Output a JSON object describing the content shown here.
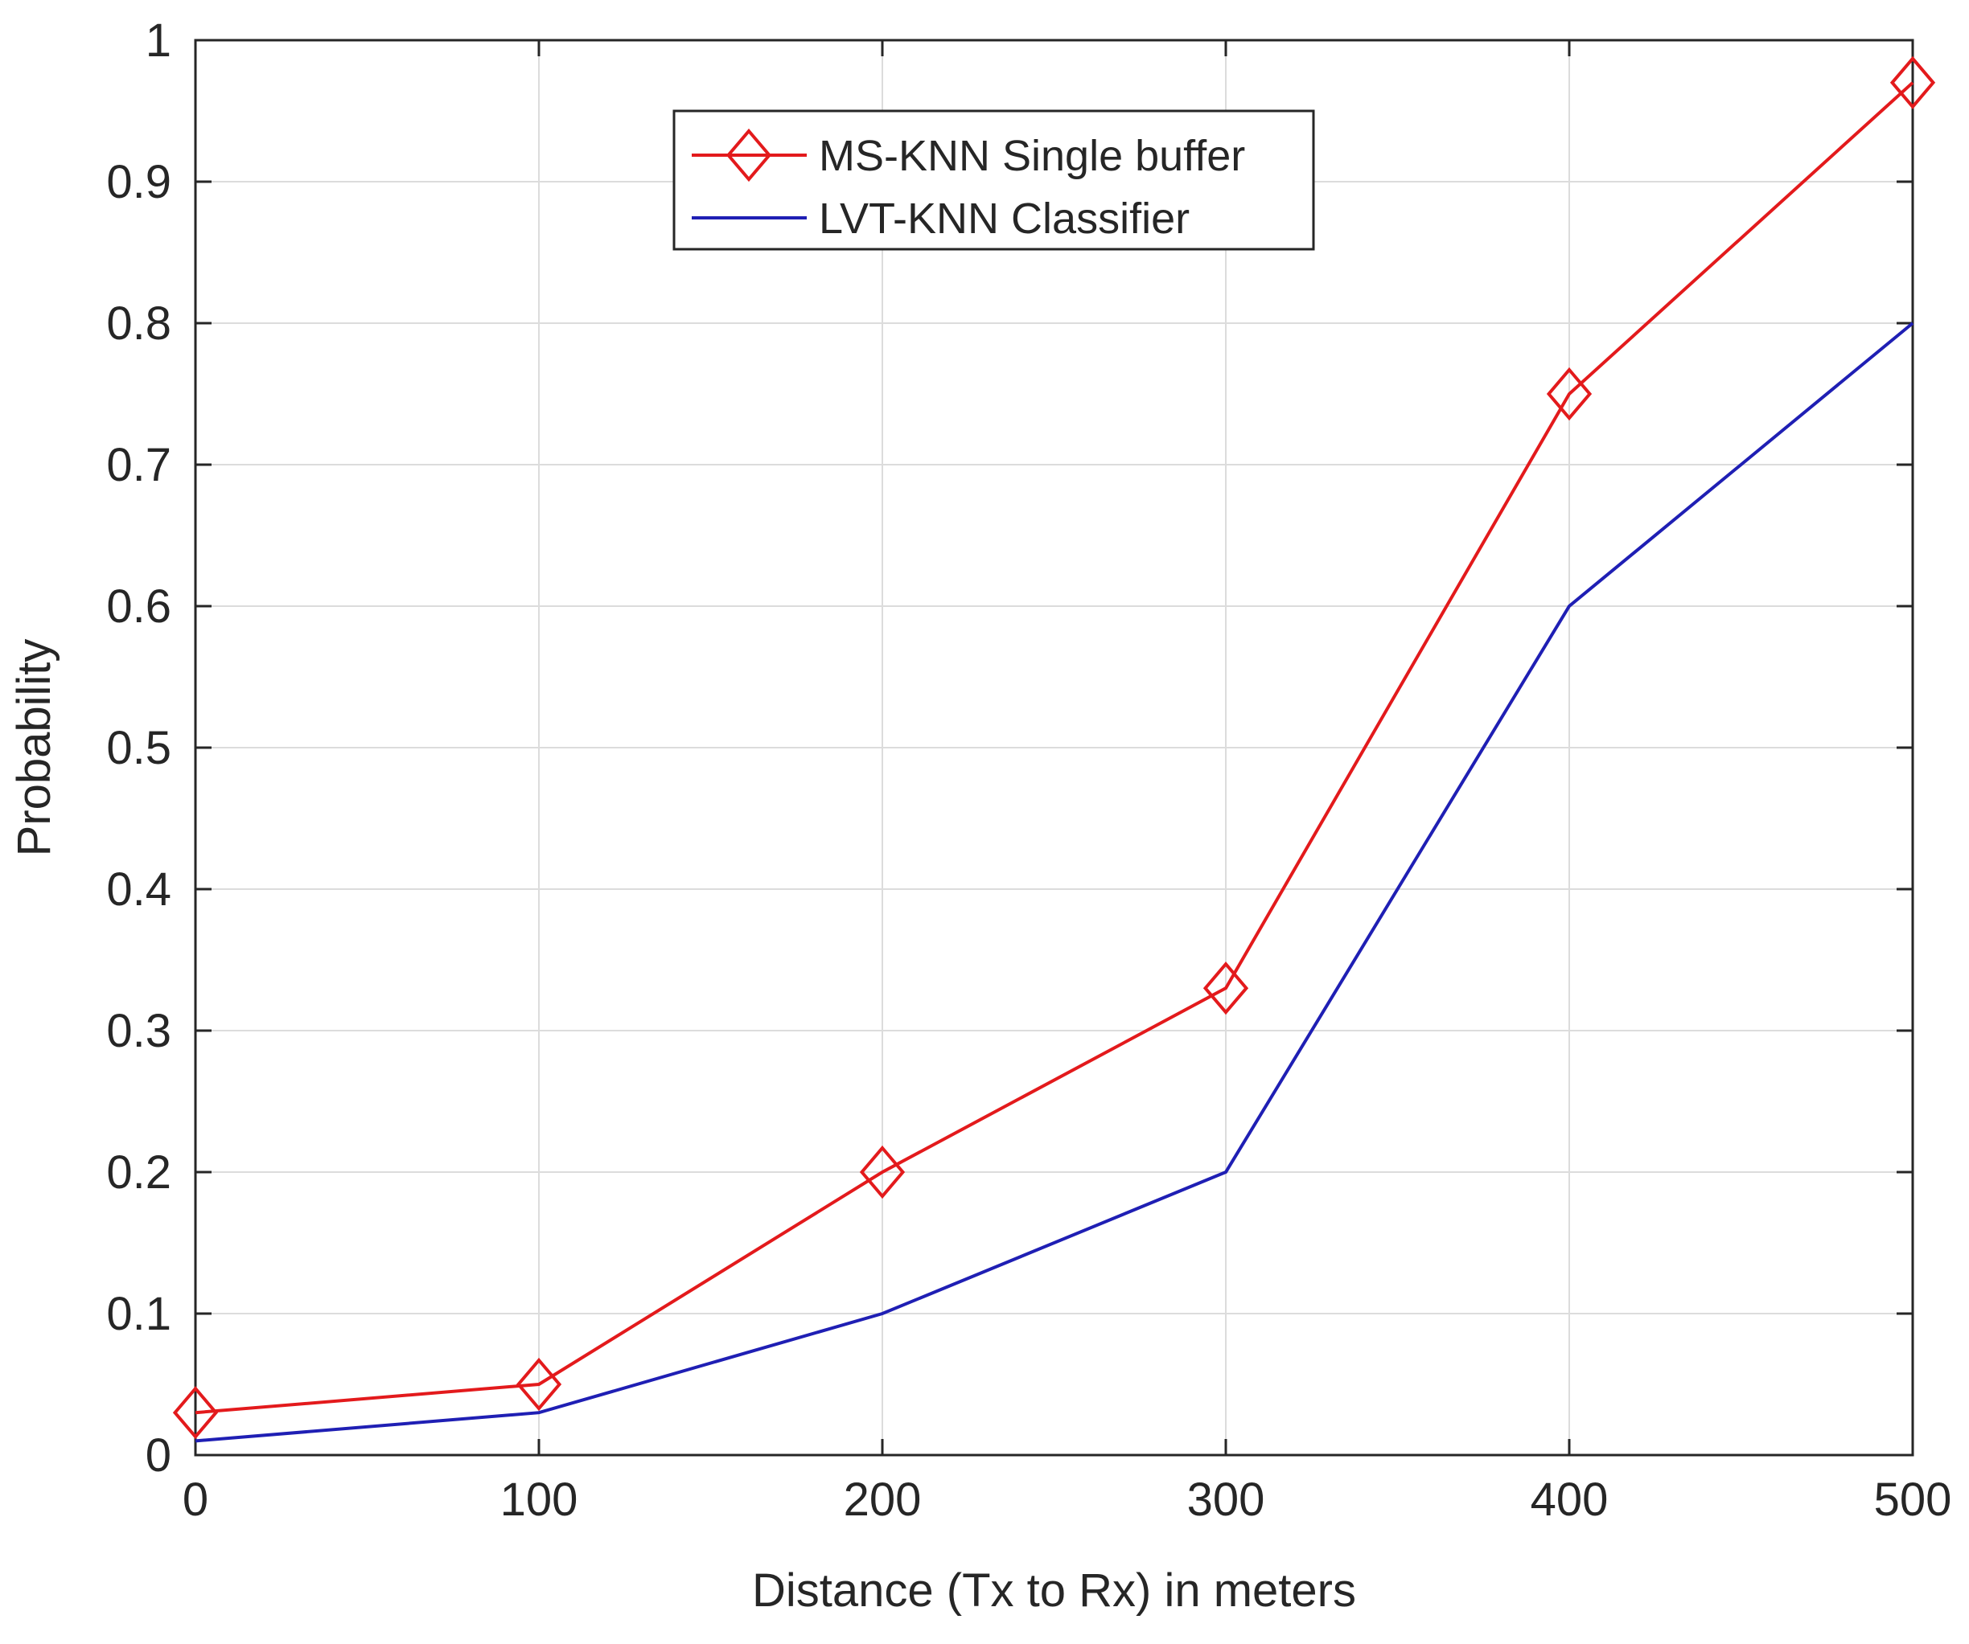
{
  "chart_data": {
    "type": "line",
    "title": "",
    "xlabel": "Distance (Tx to Rx) in meters",
    "ylabel": "Probability",
    "xlim": [
      0,
      500
    ],
    "ylim": [
      0,
      1
    ],
    "xticks": [
      0,
      100,
      200,
      300,
      400,
      500
    ],
    "yticks": [
      0,
      0.1,
      0.2,
      0.3,
      0.4,
      0.5,
      0.6,
      0.7,
      0.8,
      0.9,
      1
    ],
    "xtick_labels": [
      "0",
      "100",
      "200",
      "300",
      "400",
      "500"
    ],
    "ytick_labels": [
      "0",
      "0.1",
      "0.2",
      "0.3",
      "0.4",
      "0.5",
      "0.6",
      "0.7",
      "0.8",
      "0.9",
      "1"
    ],
    "grid": true,
    "legend_position": "top-center",
    "x": [
      0,
      100,
      200,
      300,
      400,
      500
    ],
    "series": [
      {
        "name": "MS-KNN Single buffer",
        "color": "#e31a1c",
        "marker": "diamond",
        "values": [
          0.03,
          0.05,
          0.2,
          0.33,
          0.75,
          0.97
        ]
      },
      {
        "name": "LVT-KNN Classifier",
        "color": "#1f1fb4",
        "marker": "none",
        "values": [
          0.01,
          0.03,
          0.1,
          0.2,
          0.6,
          0.8
        ]
      }
    ]
  }
}
